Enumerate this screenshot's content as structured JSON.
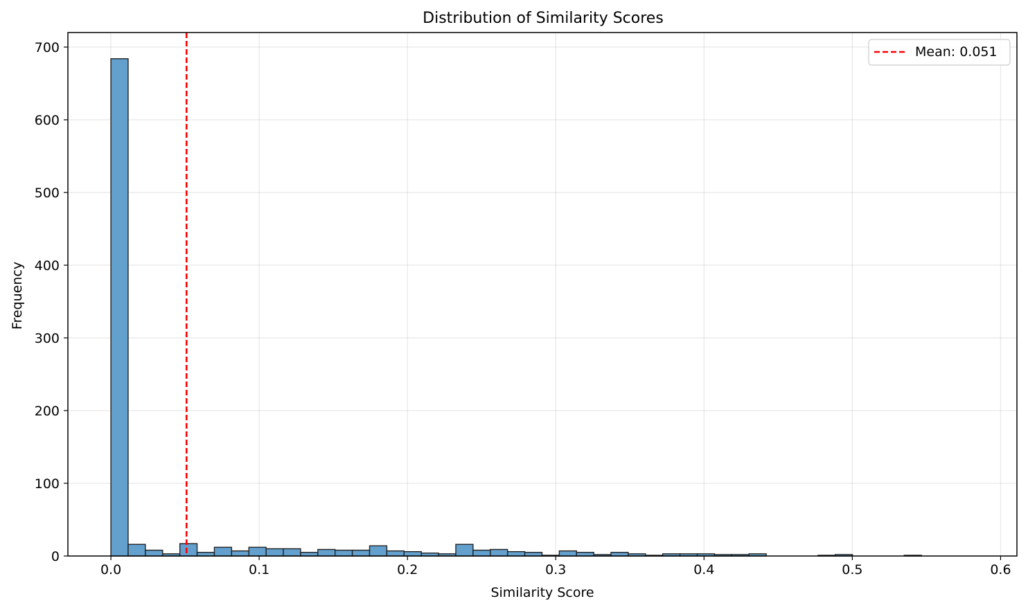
{
  "chart_data": {
    "type": "bar",
    "title": "Distribution of Similarity Scores",
    "xlabel": "Similarity Score",
    "ylabel": "Frequency",
    "xlim": [
      -0.029,
      0.611
    ],
    "ylim": [
      0,
      720
    ],
    "xticks": [
      0.0,
      0.1,
      0.2,
      0.3,
      0.4,
      0.5,
      0.6
    ],
    "xtick_labels": [
      "0.0",
      "0.1",
      "0.2",
      "0.3",
      "0.4",
      "0.5",
      "0.6"
    ],
    "yticks": [
      0,
      100,
      200,
      300,
      400,
      500,
      600,
      700
    ],
    "ytick_labels": [
      "0",
      "100",
      "200",
      "300",
      "400",
      "500",
      "600",
      "700"
    ],
    "grid": true,
    "bin_width": 0.01163,
    "bin_start": 0.0,
    "series": [
      {
        "name": "",
        "values": [
          684,
          16,
          8,
          3,
          17,
          5,
          12,
          7,
          12,
          10,
          10,
          5,
          9,
          8,
          8,
          14,
          7,
          6,
          4,
          3,
          16,
          8,
          9,
          6,
          5,
          1,
          7,
          5,
          2,
          5,
          3,
          1,
          3,
          3,
          3,
          2,
          2,
          3,
          0,
          0,
          0,
          1,
          2,
          0,
          0,
          0,
          1,
          0,
          0,
          0
        ]
      }
    ],
    "bar_color": "#5b9bcb",
    "bar_edge_color": "#222222",
    "mean_line": {
      "value": 0.051,
      "label": "Mean: 0.051",
      "color": "#ff0000",
      "style": "dashed"
    },
    "legend": {
      "position": "top-right",
      "entries": [
        "Mean: 0.051"
      ]
    }
  }
}
